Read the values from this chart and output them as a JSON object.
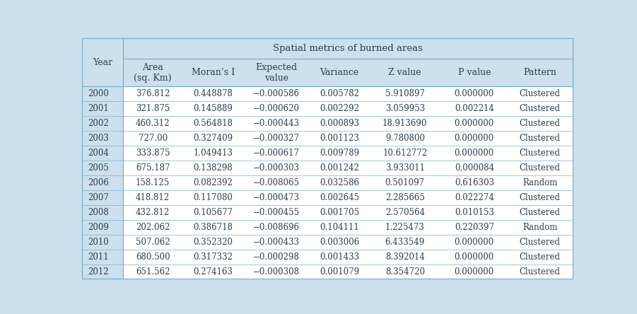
{
  "title": "Spatial metrics of burned areas",
  "col_headers": [
    "Area\n(sq. Km)",
    "Moran’s I",
    "Expected\nvalue",
    "Variance",
    "Z value",
    "P value",
    "Pattern"
  ],
  "row_label": "Year",
  "years": [
    "2000",
    "2001",
    "2002",
    "2003",
    "2004",
    "2005",
    "2006",
    "2007",
    "2008",
    "2009",
    "2010",
    "2011",
    "2012"
  ],
  "area": [
    "376.812",
    "321.875",
    "460.312",
    "727.00",
    "333.875",
    "675.187",
    "158.125",
    "418.812",
    "432.812",
    "202.062",
    "507.062",
    "680.500",
    "651.562"
  ],
  "morans_i": [
    "0.448878",
    "0.145889",
    "0.564818",
    "0.327409",
    "1.049413",
    "0.138298",
    "0.082392",
    "0.117080",
    "0.105677",
    "0.386718",
    "0.352320",
    "0.317332",
    "0.274163"
  ],
  "expected": [
    "−0.000586",
    "−0.000620",
    "−0.000443",
    "−0.000327",
    "−0.000617",
    "−0.000303",
    "−0.008065",
    "−0.000473",
    "−0.000455",
    "−0.008696",
    "−0.000433",
    "−0.000298",
    "−0.000308"
  ],
  "variance": [
    "0.005782",
    "0.002292",
    "0.000893",
    "0.001123",
    "0.009789",
    "0.001242",
    "0.032586",
    "0.002645",
    "0.001705",
    "0.104111",
    "0.003006",
    "0.001433",
    "0.001079"
  ],
  "z_value": [
    "5.910897",
    "3.059953",
    "18.913690",
    "9.780800",
    "10.612772",
    "3.933011",
    "0.501097",
    "2.285665",
    "2.570564",
    "1.225473",
    "6.433549",
    "8.392014",
    "8.354720"
  ],
  "p_value": [
    "0.000000",
    "0.002214",
    "0.000000",
    "0.000000",
    "0.000000",
    "0.000084",
    "0.616303",
    "0.022274",
    "0.010153",
    "0.220397",
    "0.000000",
    "0.000000",
    "0.000000"
  ],
  "pattern": [
    "Clustered",
    "Clustered",
    "Clustered",
    "Clustered",
    "Clustered",
    "Clustered",
    "Random",
    "Clustered",
    "Clustered",
    "Random",
    "Clustered",
    "Clustered",
    "Clustered"
  ],
  "header_bg": "#cce0ed",
  "white_bg": "#ffffff",
  "text_color": "#2c3e50",
  "border_color": "#7fb0cc",
  "fig_bg": "#cce0ed",
  "title_fontsize": 9.5,
  "cell_fontsize": 8.5,
  "header_fontsize": 9
}
